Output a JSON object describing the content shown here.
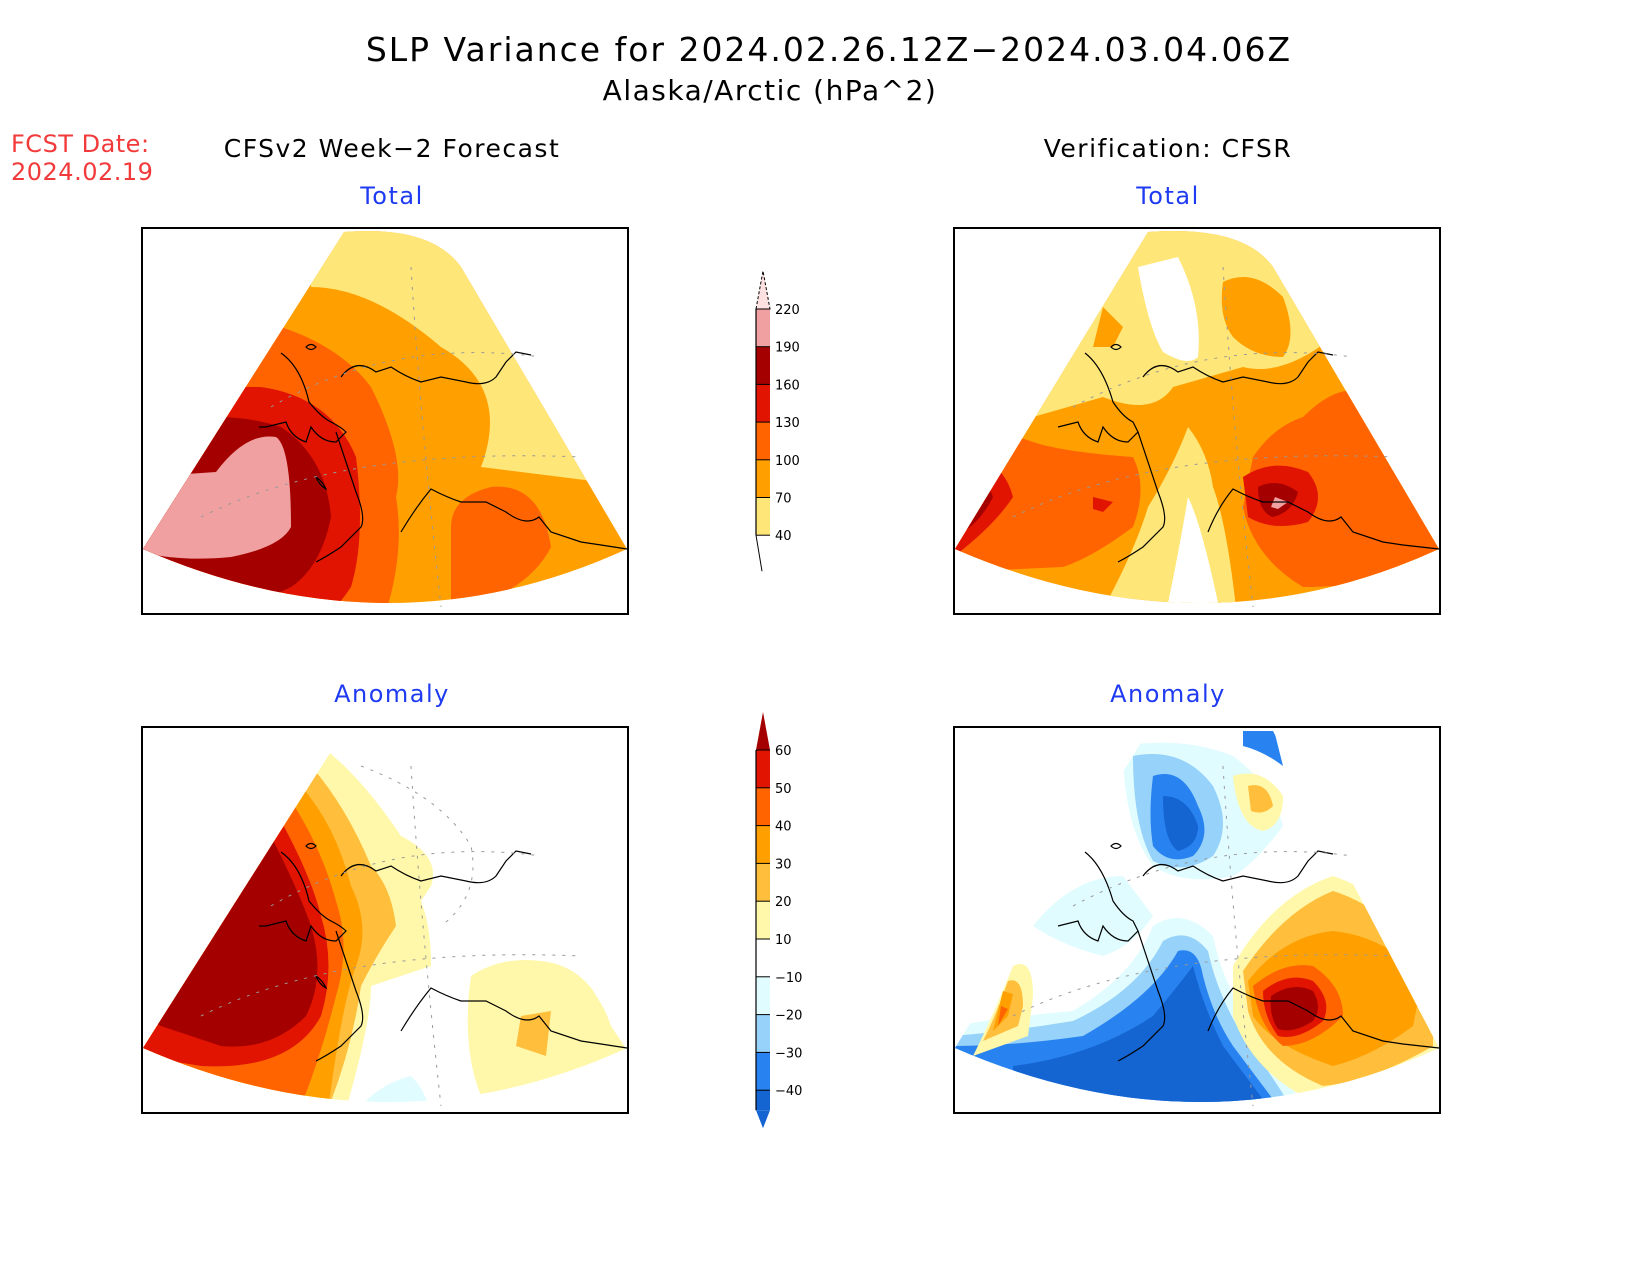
{
  "header": {
    "title": "SLP Variance for 2024.02.26.12Z−2024.03.04.06Z",
    "subtitle": "Alaska/Arctic (hPa^2)"
  },
  "forecast_date": {
    "label": "FCST Date:",
    "value": "2024.02.19"
  },
  "columns": {
    "left": "CFSv2 Week−2 Forecast",
    "right": "Verification: CFSR"
  },
  "panels": {
    "total_label": "Total",
    "anomaly_label": "Anomaly"
  },
  "colors": {
    "title_text": "#000000",
    "date_text": "#f23a3a",
    "panel_label": "#1f3bf2",
    "coast": "#000000",
    "grid": "#999999"
  },
  "chart_data": [
    {
      "type": "heatmap",
      "name": "forecast-total",
      "title": "Total",
      "column": "CFSv2 Week−2 Forecast",
      "units": "hPa^2",
      "colorbar": "total"
    },
    {
      "type": "heatmap",
      "name": "verification-total",
      "title": "Total",
      "column": "Verification: CFSR",
      "units": "hPa^2",
      "colorbar": "total"
    },
    {
      "type": "heatmap",
      "name": "forecast-anomaly",
      "title": "Anomaly",
      "column": "CFSv2 Week−2 Forecast",
      "units": "hPa^2",
      "colorbar": "anomaly"
    },
    {
      "type": "heatmap",
      "name": "verification-anomaly",
      "title": "Anomaly",
      "column": "Verification: CFSR",
      "units": "hPa^2",
      "colorbar": "anomaly"
    }
  ],
  "colorbars": {
    "total": {
      "levels": [
        "220",
        "190",
        "160",
        "130",
        "100",
        "70",
        "40"
      ],
      "colors": [
        "#fde0e0",
        "#f0a0a0",
        "#a50000",
        "#e01400",
        "#ff6400",
        "#ffa000",
        "#ffe678"
      ]
    },
    "anomaly": {
      "levels": [
        "60",
        "50",
        "40",
        "30",
        "20",
        "10",
        "−10",
        "−20",
        "−30",
        "−40"
      ],
      "colors": [
        "#a50000",
        "#e01400",
        "#ff6400",
        "#ffa000",
        "#ffbe3c",
        "#fff8aa",
        "#ffffff",
        "#e0fcff",
        "#96d2fa",
        "#2882f0",
        "#1464d2"
      ]
    }
  }
}
